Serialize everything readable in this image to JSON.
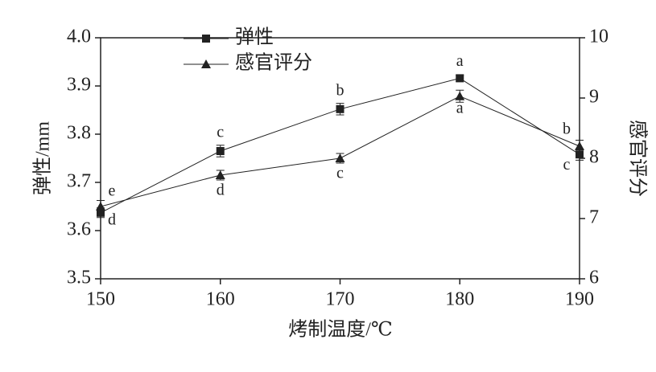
{
  "chart_data": {
    "type": "line",
    "x_label": "烤制温度/℃",
    "y_label": "弹性/mm",
    "y2_label": "感官评分",
    "x": [
      150,
      160,
      170,
      180,
      190
    ],
    "series": [
      {
        "name": "弹性",
        "color": "#222222",
        "marker": "square",
        "axis": "y",
        "values": [
          3.637,
          3.765,
          3.852,
          3.916,
          3.758
        ],
        "errors": [
          0.01,
          0.012,
          0.012,
          0.006,
          0.012
        ],
        "letters": [
          "d",
          "c",
          "b",
          "a",
          "c"
        ]
      },
      {
        "name": "感官评分",
        "color": "#222222",
        "marker": "triangle",
        "axis": "y2",
        "values": [
          7.2,
          7.72,
          8.0,
          9.03,
          8.2
        ],
        "errors": [
          0.1,
          0.08,
          0.08,
          0.1,
          0.1
        ],
        "letters": [
          "e",
          "d",
          "c",
          "a",
          "b"
        ]
      }
    ],
    "xlim": [
      150,
      190
    ],
    "xticks": [
      150,
      160,
      170,
      180,
      190
    ],
    "ylim": [
      3.5,
      4.0
    ],
    "yticks": [
      3.5,
      3.6,
      3.7,
      3.8,
      3.9,
      {
        "value": 4.0,
        "label": "4.0"
      }
    ],
    "y2lim": [
      6,
      10
    ],
    "y2ticks": [
      6,
      7,
      8,
      9,
      10
    ],
    "legend": "top-left",
    "grid": false
  }
}
